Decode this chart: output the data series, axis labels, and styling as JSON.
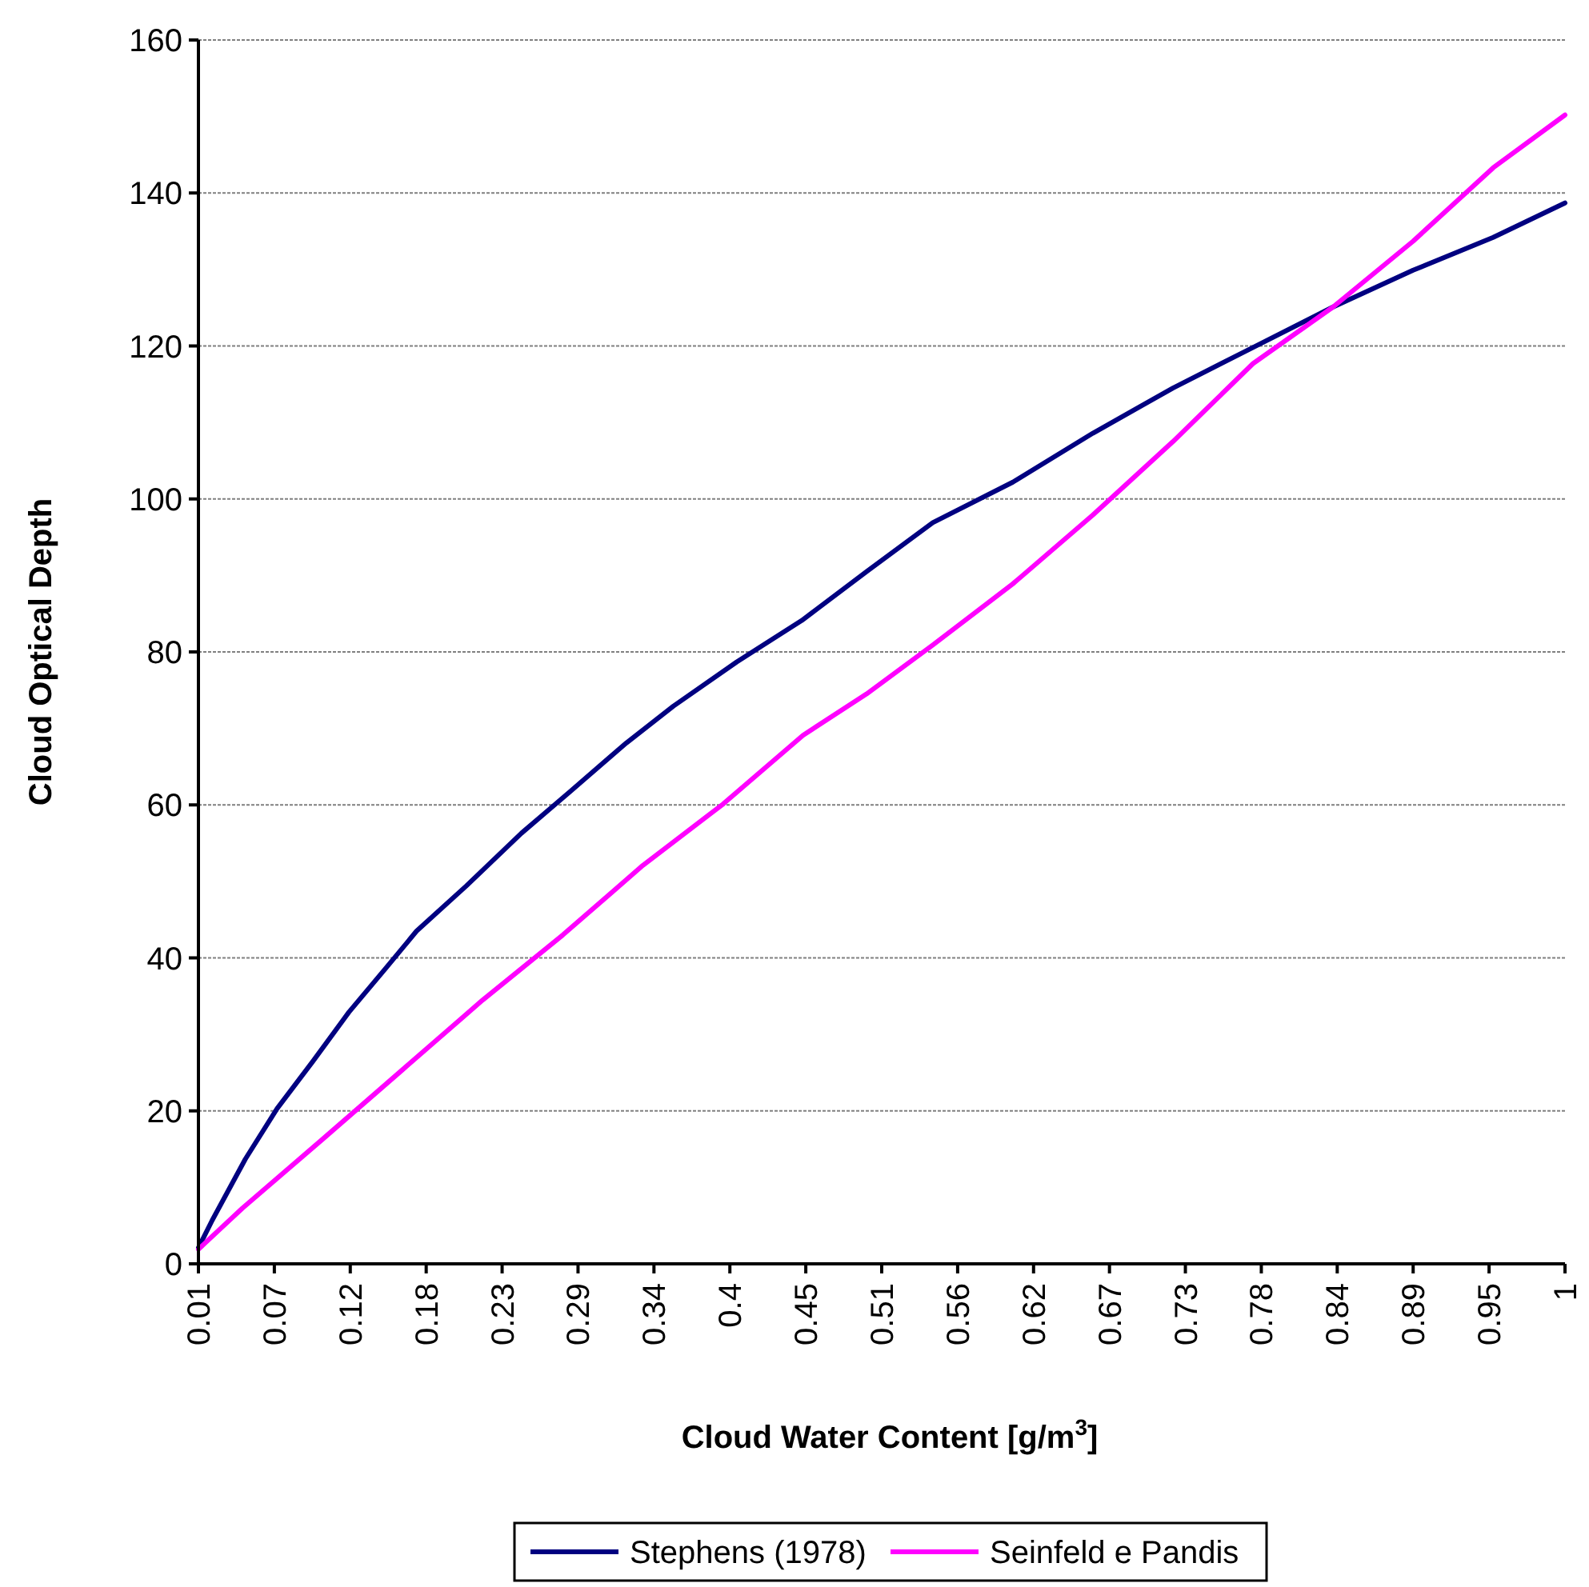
{
  "chart_data": {
    "type": "line",
    "xlabel": "Cloud Water Content [g/m$^{3}$]",
    "ylabel": "Cloud Optical Depth",
    "xlim": [
      0.01,
      1
    ],
    "xticks": [
      {
        "value": 0.01,
        "label": "0.01"
      },
      {
        "value": 0.065,
        "label": "0.07"
      },
      {
        "value": 0.12,
        "label": "0.12"
      },
      {
        "value": 0.175,
        "label": "0.18"
      },
      {
        "value": 0.23,
        "label": "0.23"
      },
      {
        "value": 0.285,
        "label": "0.29"
      },
      {
        "value": 0.34,
        "label": "0.34"
      },
      {
        "value": 0.395,
        "label": "0.4"
      },
      {
        "value": 0.45,
        "label": "0.45"
      },
      {
        "value": 0.505,
        "label": "0.51"
      },
      {
        "value": 0.56,
        "label": "0.56"
      },
      {
        "value": 0.615,
        "label": "0.62"
      },
      {
        "value": 0.67,
        "label": "0.67"
      },
      {
        "value": 0.725,
        "label": "0.73"
      },
      {
        "value": 0.78,
        "label": "0.78"
      },
      {
        "value": 0.835,
        "label": "0.84"
      },
      {
        "value": 0.89,
        "label": "0.89"
      },
      {
        "value": 0.945,
        "label": "0.95"
      },
      {
        "value": 1,
        "label": "1"
      }
    ],
    "ylim": [
      0,
      160
    ],
    "yticks": [
      0,
      20,
      40,
      60,
      80,
      100,
      120,
      140,
      160
    ],
    "grid": "y",
    "legend": "bottom",
    "marker": "none",
    "line_style": "solid",
    "series": [
      {
        "name": "Stephens (1978)",
        "color": "#000080",
        "x": [
          0.01,
          0.02,
          0.044,
          0.067,
          0.093,
          0.119,
          0.146,
          0.168,
          0.204,
          0.244,
          0.279,
          0.32,
          0.354,
          0.4,
          0.447,
          0.494,
          0.542,
          0.6,
          0.658,
          0.716,
          0.774,
          0.832,
          0.89,
          0.948,
          1
        ],
        "values": [
          2.1,
          5.7,
          13.7,
          20.3,
          26.5,
          32.9,
          38.7,
          43.5,
          49.4,
          56.3,
          61.7,
          68.1,
          72.9,
          78.7,
          84.1,
          90.5,
          96.9,
          102.2,
          108.6,
          114.5,
          119.8,
          125.1,
          129.9,
          134.2,
          138.7
        ]
      },
      {
        "name": "Seinfeld e Pandis",
        "color": "#ff00ff",
        "x": [
          0.01,
          0.042,
          0.1,
          0.158,
          0.216,
          0.274,
          0.332,
          0.39,
          0.448,
          0.494,
          0.542,
          0.6,
          0.658,
          0.716,
          0.774,
          0.832,
          0.89,
          0.948,
          1
        ],
        "values": [
          1.9,
          7.3,
          16.3,
          25.4,
          34.5,
          43,
          52.1,
          60.1,
          69.1,
          74.5,
          80.9,
          88.9,
          97.9,
          107.5,
          117.7,
          125.1,
          133.7,
          143.3,
          150.2
        ]
      }
    ]
  }
}
